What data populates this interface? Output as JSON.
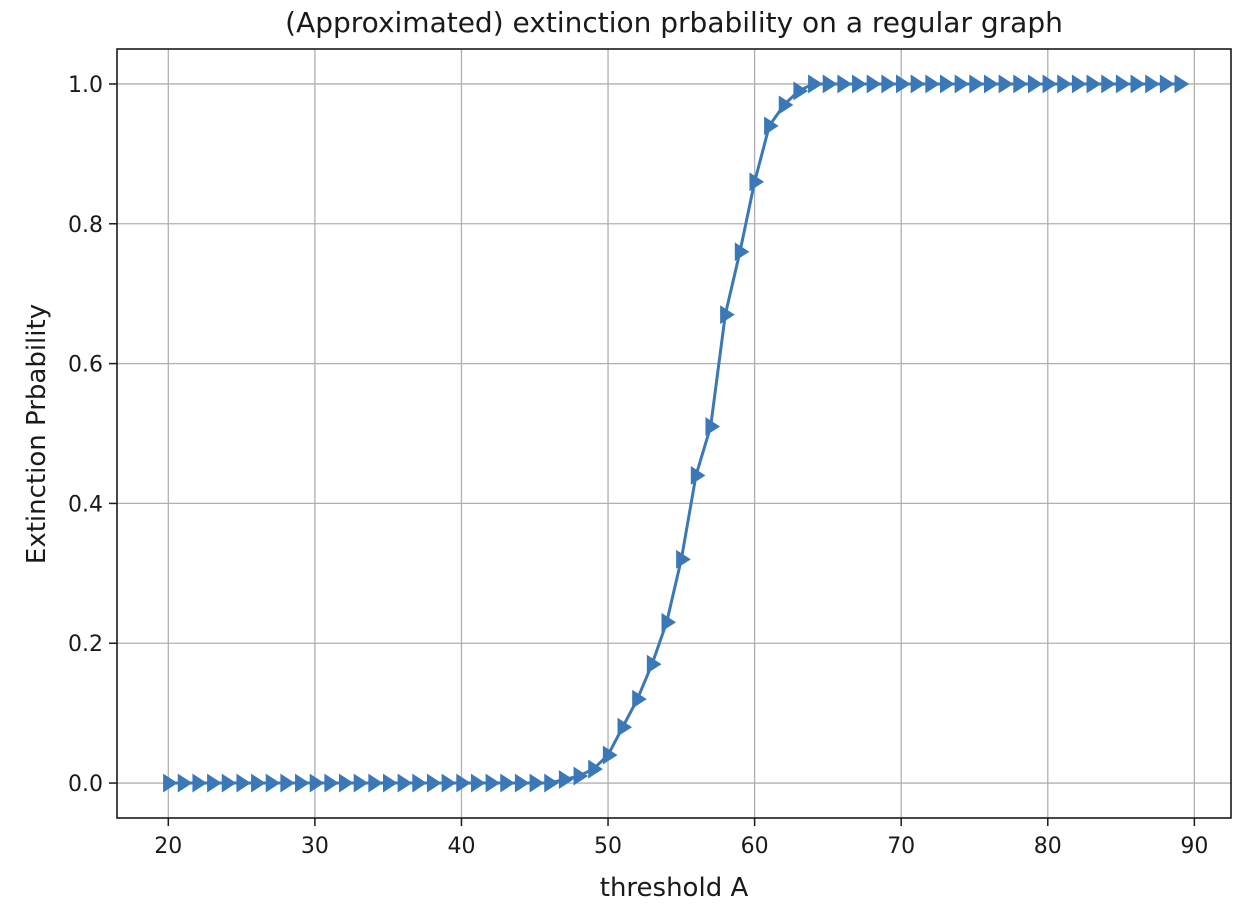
{
  "chart_data": {
    "type": "line",
    "title": "(Approximated) extinction prbability on a regular graph",
    "xlabel": "threshold A",
    "ylabel": "Extinction Prbability",
    "xlim": [
      16.5,
      92.5
    ],
    "ylim": [
      -0.05,
      1.05
    ],
    "xticks": [
      20,
      30,
      40,
      50,
      60,
      70,
      80,
      90
    ],
    "yticks": [
      0.0,
      0.2,
      0.4,
      0.6,
      0.8,
      1.0
    ],
    "xtick_labels": [
      "20",
      "30",
      "40",
      "50",
      "60",
      "70",
      "80",
      "90"
    ],
    "ytick_labels": [
      "0.0",
      "0.2",
      "0.4",
      "0.6",
      "0.8",
      "1.0"
    ],
    "grid": true,
    "marker": "triangle-right",
    "color": "#3a78b8",
    "series": [
      {
        "x": [
          20,
          21,
          22,
          23,
          24,
          25,
          26,
          27,
          28,
          29,
          30,
          31,
          32,
          33,
          34,
          35,
          36,
          37,
          38,
          39,
          40,
          41,
          42,
          43,
          44,
          45,
          46,
          47,
          48,
          49,
          50,
          51,
          52,
          53,
          54,
          55,
          56,
          57,
          58,
          59,
          60,
          61,
          62,
          63,
          64,
          65,
          66,
          67,
          68,
          69,
          70,
          71,
          72,
          73,
          74,
          75,
          76,
          77,
          78,
          79,
          80,
          81,
          82,
          83,
          84,
          85,
          86,
          87,
          88,
          89
        ],
        "values": [
          0.0,
          0.0,
          0.0,
          0.0,
          0.0,
          0.0,
          0.0,
          0.0,
          0.0,
          0.0,
          0.0,
          0.0,
          0.0,
          0.0,
          0.0,
          0.0,
          0.0,
          0.0,
          0.0,
          0.0,
          0.0,
          0.0,
          0.0,
          0.0,
          0.0,
          0.0,
          0.0,
          0.005,
          0.01,
          0.02,
          0.04,
          0.08,
          0.12,
          0.17,
          0.23,
          0.32,
          0.44,
          0.51,
          0.67,
          0.76,
          0.86,
          0.94,
          0.97,
          0.99,
          1.0,
          1.0,
          1.0,
          1.0,
          1.0,
          1.0,
          1.0,
          1.0,
          1.0,
          1.0,
          1.0,
          1.0,
          1.0,
          1.0,
          1.0,
          1.0,
          1.0,
          1.0,
          1.0,
          1.0,
          1.0,
          1.0,
          1.0,
          1.0,
          1.0,
          1.0
        ]
      }
    ]
  }
}
